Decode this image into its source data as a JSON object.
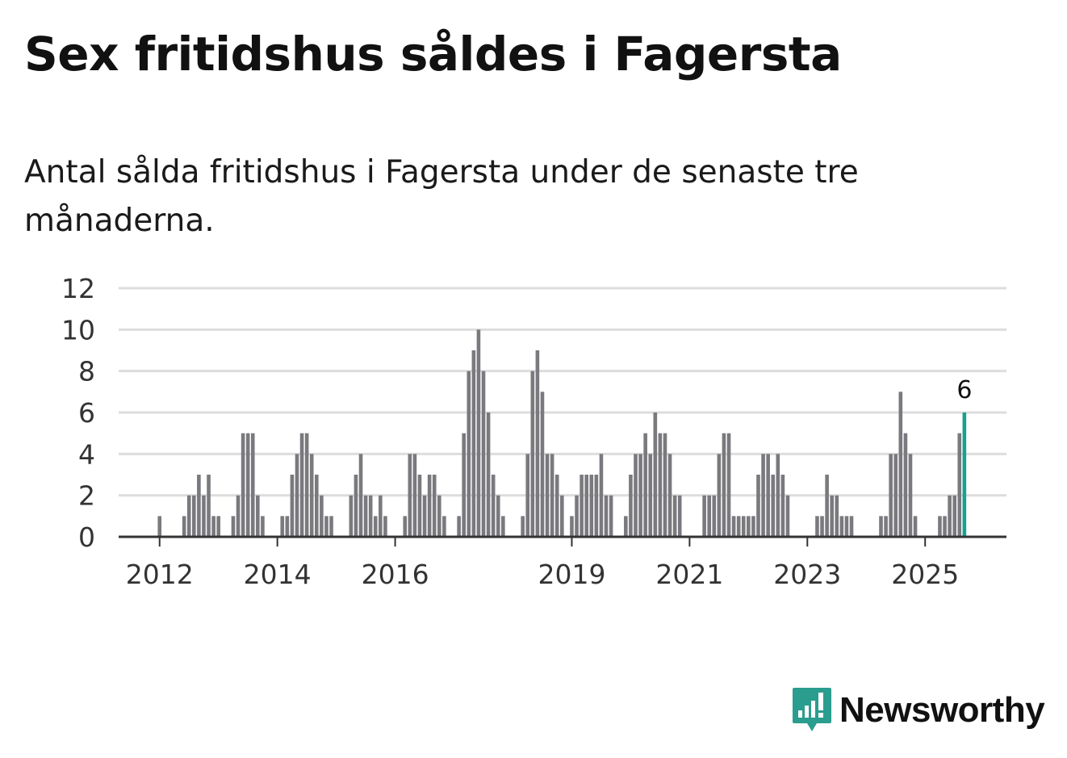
{
  "title": "Sex fritidshus såldes i Fagersta",
  "subtitle": "Antal sålda fritidshus i Fagersta under de senaste tre månaderna.",
  "brand": {
    "name": "Newsworthy",
    "color": "#2a9d8f",
    "icon": "chart-speech-bubble-icon"
  },
  "colors": {
    "bar": "#7a797e",
    "highlight": "#17a092",
    "grid": "#dddddd",
    "axis": "#333333"
  },
  "chart_data": {
    "type": "bar",
    "x_start": "2011-10",
    "x_unit": "month",
    "ylim": [
      0,
      12
    ],
    "yticks": [
      0,
      2,
      4,
      6,
      8,
      10,
      12
    ],
    "xticks": [
      {
        "label": "2012",
        "index": 3
      },
      {
        "label": "2014",
        "index": 27
      },
      {
        "label": "2016",
        "index": 51
      },
      {
        "label": "2019",
        "index": 87
      },
      {
        "label": "2021",
        "index": 111
      },
      {
        "label": "2023",
        "index": 135
      },
      {
        "label": "2025",
        "index": 159
      }
    ],
    "values": [
      0,
      0,
      0,
      1,
      0,
      0,
      0,
      0,
      1,
      2,
      2,
      3,
      2,
      3,
      1,
      1,
      0,
      0,
      1,
      2,
      5,
      5,
      5,
      2,
      1,
      0,
      0,
      0,
      1,
      1,
      3,
      4,
      5,
      5,
      4,
      3,
      2,
      1,
      1,
      0,
      0,
      0,
      2,
      3,
      4,
      2,
      2,
      1,
      2,
      1,
      0,
      0,
      0,
      1,
      4,
      4,
      3,
      2,
      3,
      3,
      2,
      1,
      0,
      0,
      1,
      5,
      8,
      9,
      10,
      8,
      6,
      3,
      2,
      1,
      0,
      0,
      0,
      1,
      4,
      8,
      9,
      7,
      4,
      4,
      3,
      2,
      0,
      1,
      2,
      3,
      3,
      3,
      3,
      4,
      2,
      2,
      0,
      0,
      1,
      3,
      4,
      4,
      5,
      4,
      6,
      5,
      5,
      4,
      2,
      2,
      0,
      0,
      0,
      0,
      2,
      2,
      2,
      4,
      5,
      5,
      1,
      1,
      1,
      1,
      1,
      3,
      4,
      4,
      3,
      4,
      3,
      2,
      0,
      0,
      0,
      0,
      0,
      1,
      1,
      3,
      2,
      2,
      1,
      1,
      1,
      0,
      0,
      0,
      0,
      0,
      1,
      1,
      4,
      4,
      7,
      5,
      4,
      1,
      0,
      0,
      0,
      0,
      1,
      1,
      2,
      2,
      5,
      6
    ],
    "highlight_value": "6"
  }
}
